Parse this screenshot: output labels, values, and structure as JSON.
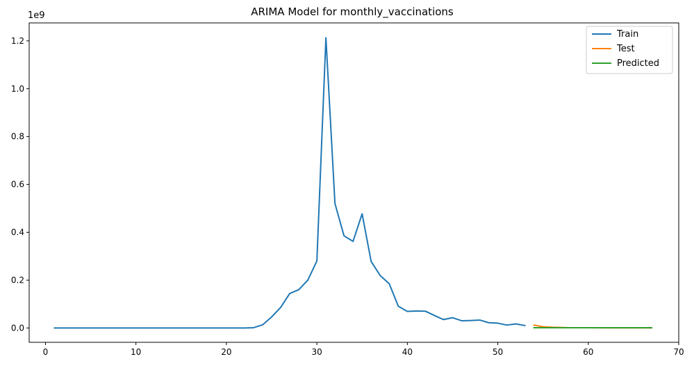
{
  "chart_data": {
    "type": "line",
    "title": "ARIMA Model for monthly_vaccinations",
    "xlabel": "",
    "ylabel": "",
    "y_offset_label": "1e9",
    "xlim": [
      -1.8,
      70.0
    ],
    "ylim": [
      -0.06,
      1.275
    ],
    "x_ticks": [
      0,
      10,
      20,
      30,
      40,
      50,
      60,
      70
    ],
    "x_tick_labels": [
      "0",
      "10",
      "20",
      "30",
      "40",
      "50",
      "60",
      "70"
    ],
    "y_ticks": [
      0.0,
      0.2,
      0.4,
      0.6,
      0.8,
      1.0,
      1.2
    ],
    "y_tick_labels": [
      "0.0",
      "0.2",
      "0.4",
      "0.6",
      "0.8",
      "1.0",
      "1.2"
    ],
    "grid": false,
    "legend_position": "top-right",
    "series": [
      {
        "name": "Train",
        "color": "#1f77b4",
        "x": [
          1,
          2,
          3,
          4,
          5,
          6,
          7,
          8,
          9,
          10,
          11,
          12,
          13,
          14,
          15,
          16,
          17,
          18,
          19,
          20,
          21,
          22,
          23,
          24,
          25,
          26,
          27,
          28,
          29,
          30,
          31,
          32,
          33,
          34,
          35,
          36,
          37,
          38,
          39,
          40,
          41,
          42,
          43,
          44,
          45,
          46,
          47,
          48,
          49,
          50,
          51,
          52,
          53
        ],
        "y": [
          0,
          0,
          0,
          0,
          0,
          0,
          0,
          0,
          0,
          0,
          0,
          0,
          0,
          0,
          0,
          0,
          0,
          0,
          0,
          0,
          0,
          0,
          0.001,
          0.013,
          0.046,
          0.086,
          0.144,
          0.16,
          0.2,
          0.28,
          1.213,
          0.52,
          0.385,
          0.362,
          0.477,
          0.278,
          0.219,
          0.185,
          0.091,
          0.069,
          0.071,
          0.07,
          0.052,
          0.035,
          0.043,
          0.03,
          0.031,
          0.033,
          0.022,
          0.02,
          0.012,
          0.017,
          0.01
        ]
      },
      {
        "name": "Test",
        "color": "#ff7f0e",
        "x": [
          54,
          55,
          56,
          57,
          58,
          59,
          60,
          61,
          62,
          63,
          64,
          65,
          66,
          67
        ],
        "y": [
          0.012,
          0.005,
          0.003,
          0.002,
          0.001,
          0.001,
          0.001,
          0.0005,
          0.0003,
          0.0003,
          0.0002,
          0.0002,
          0.0001,
          0.0001
        ]
      },
      {
        "name": "Predicted",
        "color": "#2ca02c",
        "x": [
          54,
          55,
          56,
          57,
          58,
          59,
          60,
          61,
          62,
          63,
          64,
          65,
          66,
          67
        ],
        "y": [
          0.001,
          0.001,
          0.001,
          0.001,
          0.001,
          0.001,
          0.001,
          0.001,
          0.001,
          0.001,
          0.001,
          0.001,
          0.001,
          0.001
        ]
      }
    ]
  }
}
